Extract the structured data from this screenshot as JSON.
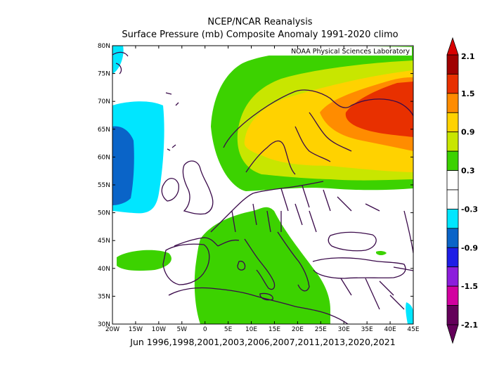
{
  "title_line1": "NCEP/NCAR Reanalysis",
  "title_line2": "Surface Pressure (mb) Composite Anomaly 1991-2020 climo",
  "subtitle": "Jun 1996,1998,2001,2003,2006,2007,2011,2013,2020,2021",
  "credit": "NOAA Physical Sciences Laboratory",
  "map": {
    "lon_ticks": [
      "20W",
      "15W",
      "10W",
      "5W",
      "0",
      "5E",
      "10E",
      "15E",
      "20E",
      "25E",
      "30E",
      "35E",
      "40E",
      "45E"
    ],
    "lat_ticks": [
      "80N",
      "75N",
      "70N",
      "65N",
      "60N",
      "55N",
      "50N",
      "45N",
      "40N",
      "35N",
      "30N"
    ],
    "extent": {
      "lon": [
        -20,
        45
      ],
      "lat": [
        30,
        80
      ]
    }
  },
  "colorbar": {
    "labels": [
      "2.1",
      "1.5",
      "0.9",
      "0.3",
      "-0.3",
      "-0.9",
      "-1.5",
      "-2.1"
    ],
    "colors": [
      "#a00000",
      "#e83000",
      "#ff8c00",
      "#ffd200",
      "#c8e600",
      "#3cd200",
      "#ffffff",
      "#ffffff",
      "#00e6ff",
      "#0a64c8",
      "#1e1ee6",
      "#8c1edc",
      "#d200a0",
      "#64005a"
    ],
    "color_meaning": {
      "strong_positive": "#e83000",
      "moderate_positive": "#ffd200",
      "weak_positive": "#3cd200",
      "near_zero": "#ffffff",
      "weak_negative": "#00e6ff",
      "moderate_negative": "#0a64c8"
    }
  }
}
